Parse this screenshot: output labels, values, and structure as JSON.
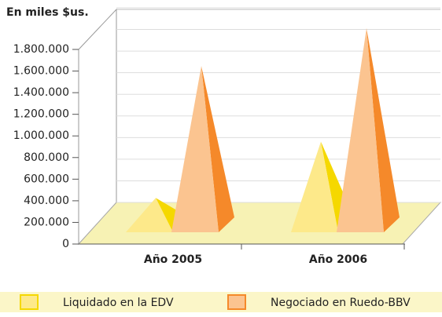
{
  "chart_data": {
    "type": "pyramid3d",
    "title": "En miles $us.",
    "categories": [
      "Año 2005",
      "Año 2006"
    ],
    "series": [
      {
        "name": "Liquidado en la EDV",
        "color": "#fde98a",
        "values": [
          180000,
          700000
        ]
      },
      {
        "name": "Negociado en Ruedo-BBV",
        "color": "#fbc490",
        "values": [
          1400000,
          1750000
        ]
      }
    ],
    "ylim": [
      0,
      1800000
    ],
    "yticks": [
      0,
      {
        "value": 200000,
        "label": "200.000"
      },
      {
        "value": 400000,
        "label": "400.000"
      },
      {
        "value": 600000,
        "label": "600.000"
      },
      {
        "value": 800000,
        "label": "800.000"
      },
      {
        "value": 1000000,
        "label": "1.000.000"
      },
      {
        "value": 1200000,
        "label": "1.200.000"
      },
      {
        "value": 1400000,
        "label": "1.400.000"
      },
      {
        "value": 1600000,
        "label": "1.600.000"
      },
      {
        "value": 1800000,
        "label": "1.800.000"
      }
    ]
  }
}
